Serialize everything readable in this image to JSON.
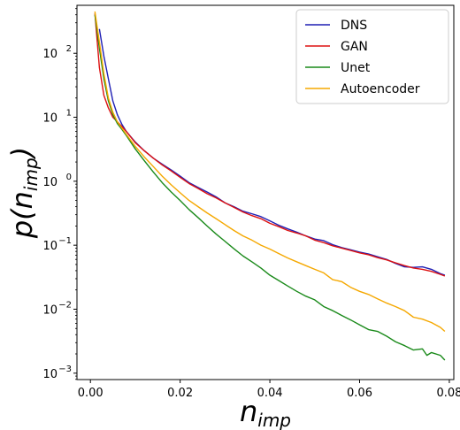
{
  "chart_data": {
    "type": "line",
    "xlabel": "n",
    "xlabel_sub": "imp",
    "ylabel": "p(n",
    "ylabel_sub": "imp",
    "ylabel_close": ")",
    "xlim": [
      -0.003,
      0.081
    ],
    "ylim_log10": [
      -3.1,
      2.75
    ],
    "yscale": "log",
    "grid": false,
    "legend_position": "top-right",
    "x_ticks": [
      {
        "value": 0.0,
        "label": "0.00"
      },
      {
        "value": 0.02,
        "label": "0.02"
      },
      {
        "value": 0.04,
        "label": "0.04"
      },
      {
        "value": 0.06,
        "label": "0.06"
      },
      {
        "value": 0.08,
        "label": "0.08"
      }
    ],
    "y_ticks": [
      {
        "exp": -3,
        "base": "10",
        "sup": "−3"
      },
      {
        "exp": -2,
        "base": "10",
        "sup": "−2"
      },
      {
        "exp": -1,
        "base": "10",
        "sup": "−1"
      },
      {
        "exp": 0,
        "base": "10",
        "sup": "0"
      },
      {
        "exp": 1,
        "base": "10",
        "sup": "1"
      },
      {
        "exp": 2,
        "base": "10",
        "sup": "2"
      }
    ],
    "series": [
      {
        "name": "DNS",
        "color": "#1f1fb4",
        "x": [
          0.002,
          0.003,
          0.004,
          0.005,
          0.006,
          0.007,
          0.008,
          0.01,
          0.012,
          0.014,
          0.016,
          0.018,
          0.02,
          0.022,
          0.024,
          0.026,
          0.028,
          0.03,
          0.032,
          0.034,
          0.036,
          0.038,
          0.04,
          0.042,
          0.044,
          0.046,
          0.048,
          0.05,
          0.052,
          0.054,
          0.056,
          0.058,
          0.06,
          0.062,
          0.064,
          0.066,
          0.068,
          0.07,
          0.072,
          0.074,
          0.076,
          0.078,
          0.079
        ],
        "y": [
          240,
          90,
          40,
          18,
          11,
          7.8,
          6.0,
          4.1,
          3.0,
          2.3,
          1.85,
          1.5,
          1.2,
          0.95,
          0.8,
          0.68,
          0.57,
          0.46,
          0.4,
          0.34,
          0.31,
          0.28,
          0.24,
          0.205,
          0.18,
          0.16,
          0.14,
          0.125,
          0.118,
          0.102,
          0.092,
          0.085,
          0.078,
          0.073,
          0.066,
          0.06,
          0.052,
          0.046,
          0.045,
          0.046,
          0.042,
          0.036,
          0.034
        ]
      },
      {
        "name": "GAN",
        "color": "#dd1111",
        "x": [
          0.001,
          0.002,
          0.003,
          0.004,
          0.005,
          0.006,
          0.007,
          0.008,
          0.01,
          0.012,
          0.014,
          0.016,
          0.018,
          0.02,
          0.022,
          0.024,
          0.026,
          0.028,
          0.03,
          0.032,
          0.034,
          0.036,
          0.038,
          0.04,
          0.042,
          0.044,
          0.046,
          0.048,
          0.05,
          0.052,
          0.054,
          0.056,
          0.058,
          0.06,
          0.062,
          0.064,
          0.066,
          0.068,
          0.07,
          0.072,
          0.074,
          0.076,
          0.078,
          0.079
        ],
        "y": [
          420,
          60,
          22,
          14,
          10,
          8.5,
          7.2,
          6.0,
          4.0,
          3.0,
          2.3,
          1.8,
          1.45,
          1.15,
          0.92,
          0.77,
          0.64,
          0.55,
          0.46,
          0.39,
          0.33,
          0.29,
          0.26,
          0.22,
          0.195,
          0.17,
          0.155,
          0.14,
          0.12,
          0.11,
          0.098,
          0.09,
          0.083,
          0.076,
          0.071,
          0.064,
          0.059,
          0.053,
          0.048,
          0.044,
          0.042,
          0.039,
          0.035,
          0.033
        ]
      },
      {
        "name": "Unet",
        "color": "#1a8a1a",
        "x": [
          0.001,
          0.002,
          0.003,
          0.004,
          0.005,
          0.006,
          0.007,
          0.008,
          0.01,
          0.012,
          0.014,
          0.016,
          0.018,
          0.02,
          0.022,
          0.024,
          0.026,
          0.028,
          0.03,
          0.032,
          0.034,
          0.036,
          0.038,
          0.04,
          0.042,
          0.044,
          0.046,
          0.048,
          0.05,
          0.052,
          0.054,
          0.056,
          0.058,
          0.06,
          0.062,
          0.064,
          0.066,
          0.068,
          0.07,
          0.072,
          0.074,
          0.075,
          0.076,
          0.078,
          0.079
        ],
        "y": [
          400,
          120,
          40,
          18,
          11,
          8.0,
          6.5,
          5.2,
          3.2,
          2.1,
          1.4,
          0.95,
          0.68,
          0.5,
          0.36,
          0.27,
          0.2,
          0.15,
          0.115,
          0.088,
          0.068,
          0.055,
          0.044,
          0.034,
          0.028,
          0.023,
          0.019,
          0.016,
          0.014,
          0.011,
          0.0095,
          0.008,
          0.0068,
          0.0057,
          0.0048,
          0.0045,
          0.0038,
          0.0031,
          0.0027,
          0.0023,
          0.0024,
          0.0019,
          0.0021,
          0.0019,
          0.0016
        ]
      },
      {
        "name": "Autoencoder",
        "color": "#f5a800",
        "x": [
          0.001,
          0.002,
          0.003,
          0.004,
          0.005,
          0.006,
          0.007,
          0.008,
          0.01,
          0.012,
          0.014,
          0.016,
          0.018,
          0.02,
          0.022,
          0.024,
          0.026,
          0.028,
          0.03,
          0.032,
          0.034,
          0.036,
          0.038,
          0.04,
          0.042,
          0.044,
          0.046,
          0.048,
          0.05,
          0.052,
          0.054,
          0.056,
          0.058,
          0.06,
          0.062,
          0.064,
          0.066,
          0.068,
          0.07,
          0.072,
          0.074,
          0.076,
          0.078,
          0.079
        ],
        "y": [
          450,
          150,
          48,
          20,
          12,
          8.5,
          6.8,
          5.4,
          3.5,
          2.4,
          1.7,
          1.2,
          0.88,
          0.66,
          0.5,
          0.4,
          0.32,
          0.26,
          0.21,
          0.17,
          0.14,
          0.12,
          0.1,
          0.087,
          0.074,
          0.063,
          0.055,
          0.048,
          0.042,
          0.037,
          0.029,
          0.027,
          0.022,
          0.019,
          0.017,
          0.0145,
          0.0125,
          0.011,
          0.0095,
          0.0075,
          0.007,
          0.0062,
          0.0052,
          0.0045
        ]
      }
    ]
  }
}
